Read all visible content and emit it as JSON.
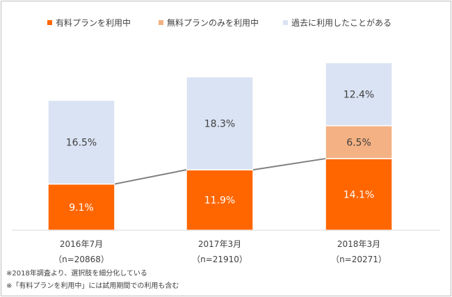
{
  "chart_data": {
    "type": "bar",
    "stacked": true,
    "categories": [
      "2016年7月",
      "2017年3月",
      "2018年3月"
    ],
    "sample_sizes": [
      "（n=20868）",
      "（n=21910）",
      "（n=20271）"
    ],
    "series": [
      {
        "name": "有料プランを利用中",
        "values": [
          9.1,
          11.9,
          14.1
        ],
        "labels": [
          "9.1%",
          "11.9%",
          "14.1%"
        ],
        "color": "#ff6600",
        "label_color": "#ffffff"
      },
      {
        "name": "無料プランのみを利用中",
        "values": [
          0,
          0,
          6.5
        ],
        "labels": [
          "",
          "",
          "6.5%"
        ],
        "color": "#f4b183",
        "label_color": "#404040"
      },
      {
        "name": "過去に利用したことがある",
        "values": [
          16.5,
          18.3,
          12.4
        ],
        "labels": [
          "16.5%",
          "18.3%",
          "12.4%"
        ],
        "color": "#dae3f3",
        "label_color": "#404040"
      }
    ],
    "trend_line": {
      "series_index": 0,
      "color": "#7f7f7f"
    },
    "legend_position": "top",
    "grid": false
  },
  "notes": [
    "※2018年調査より、選択肢を細分化している",
    "※「有料プランを利用中」には試用期間での利用も含む"
  ]
}
